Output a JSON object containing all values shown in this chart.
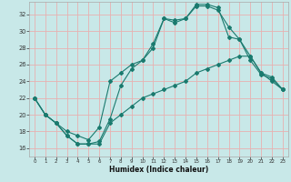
{
  "xlabel": "Humidex (Indice chaleur)",
  "xlim": [
    -0.5,
    23.5
  ],
  "ylim": [
    15.0,
    33.5
  ],
  "yticks": [
    16,
    18,
    20,
    22,
    24,
    26,
    28,
    30,
    32
  ],
  "xticks": [
    0,
    1,
    2,
    3,
    4,
    5,
    6,
    7,
    8,
    9,
    10,
    11,
    12,
    13,
    14,
    15,
    16,
    17,
    18,
    19,
    20,
    21,
    22,
    23
  ],
  "bg_color": "#c8e8e8",
  "grid_color": "#e8b0b0",
  "line_color": "#1a7a6e",
  "curve1_x": [
    0,
    1,
    2,
    3,
    4,
    5,
    6,
    7,
    8,
    9,
    10,
    11,
    12,
    13,
    14,
    15,
    16,
    17,
    18,
    19,
    20,
    21,
    22,
    23
  ],
  "curve1_y": [
    22,
    20,
    19,
    17.5,
    16.5,
    16.5,
    16.8,
    19.5,
    23.5,
    25.5,
    26.5,
    28.5,
    31.5,
    31,
    31.5,
    33,
    33,
    32.5,
    30.5,
    29,
    27,
    25,
    24,
    23
  ],
  "curve2_x": [
    0,
    1,
    2,
    3,
    4,
    5,
    6,
    7,
    8,
    9,
    10,
    11,
    12,
    13,
    14,
    15,
    16,
    17,
    18,
    19,
    20,
    21,
    22,
    23
  ],
  "curve2_y": [
    22,
    20,
    19,
    18,
    17.5,
    17,
    18.5,
    24,
    25,
    26,
    26.5,
    28,
    31.5,
    31.3,
    31.5,
    33.2,
    33.2,
    32.8,
    29.3,
    29,
    26.5,
    24.8,
    24.3,
    23
  ],
  "curve3_x": [
    0,
    1,
    2,
    3,
    4,
    5,
    6,
    7,
    8,
    9,
    10,
    11,
    12,
    13,
    14,
    15,
    16,
    17,
    18,
    19,
    20,
    21,
    22,
    23
  ],
  "curve3_y": [
    22,
    20,
    19,
    17.5,
    16.5,
    16.5,
    16.5,
    19,
    20,
    21,
    22,
    22.5,
    23,
    23.5,
    24,
    25,
    25.5,
    26,
    26.5,
    27,
    27,
    25,
    24.5,
    23
  ]
}
